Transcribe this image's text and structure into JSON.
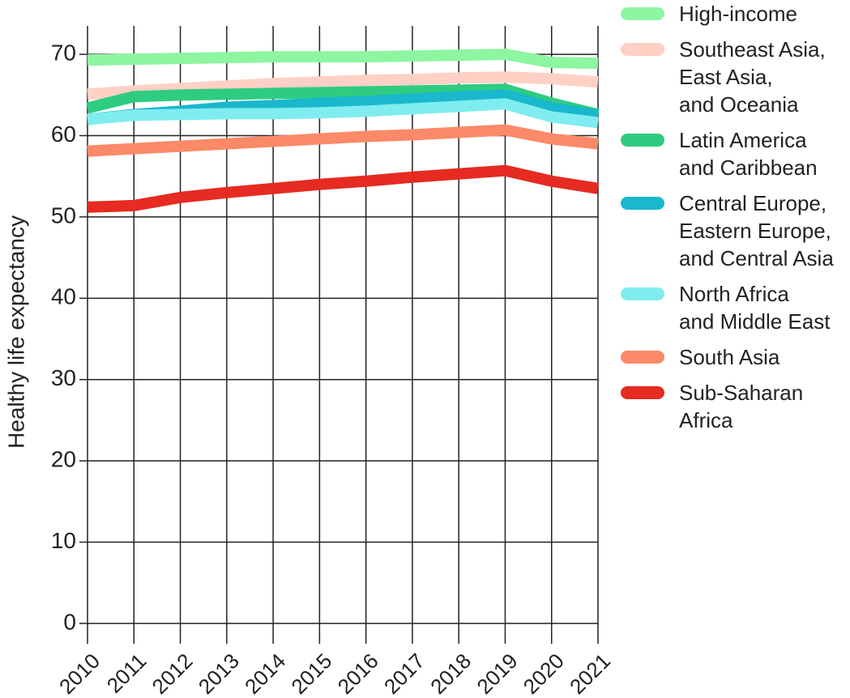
{
  "chart_data": {
    "type": "line",
    "y_label": "Healthy life expectancy",
    "x": [
      2010,
      2011,
      2012,
      2013,
      2014,
      2015,
      2016,
      2017,
      2018,
      2019,
      2020,
      2021
    ],
    "xlim": [
      2010,
      2021
    ],
    "xticks": [
      2010,
      2011,
      2012,
      2013,
      2014,
      2015,
      2016,
      2017,
      2018,
      2019,
      2020,
      2021
    ],
    "ylim": [
      -2.5,
      73.5
    ],
    "yticks": [
      0,
      10,
      20,
      30,
      40,
      50,
      60,
      70
    ],
    "grid": true,
    "legend": "right",
    "series": [
      {
        "name": "High-income",
        "color": "#8ef5a0",
        "values": [
          69.3,
          69.4,
          69.5,
          69.6,
          69.7,
          69.7,
          69.7,
          69.8,
          69.9,
          70.0,
          69.0,
          68.9
        ]
      },
      {
        "name": "Southeast Asia,\nEast Asia,\nand Oceania",
        "color": "#ffd0c4",
        "values": [
          65.1,
          65.5,
          65.8,
          66.1,
          66.4,
          66.6,
          66.8,
          66.9,
          67.1,
          67.2,
          67.0,
          66.6
        ]
      },
      {
        "name": "Latin America\nand Caribbean",
        "color": "#2ecc80",
        "values": [
          63.4,
          64.8,
          65.0,
          65.1,
          65.2,
          65.3,
          65.4,
          65.5,
          65.6,
          65.7,
          64.0,
          62.6
        ]
      },
      {
        "name": "Central Europe,\nEastern Europe,\nand Central Asia",
        "color": "#1ab8cc",
        "values": [
          62.0,
          62.6,
          63.0,
          63.5,
          63.7,
          64.0,
          64.2,
          64.5,
          64.8,
          65.0,
          63.4,
          62.5
        ]
      },
      {
        "name": "North Africa\nand Middle East",
        "color": "#7fedf0",
        "values": [
          62.0,
          62.5,
          62.6,
          62.7,
          62.7,
          62.8,
          63.0,
          63.3,
          63.6,
          63.9,
          62.3,
          61.6
        ]
      },
      {
        "name": "South Asia",
        "color": "#fa8a68",
        "values": [
          58.1,
          58.4,
          58.7,
          59.0,
          59.3,
          59.6,
          59.9,
          60.1,
          60.4,
          60.7,
          59.6,
          59.0
        ]
      },
      {
        "name": "Sub-Saharan\nAfrica",
        "color": "#e52b22",
        "values": [
          51.2,
          51.4,
          52.4,
          53.0,
          53.5,
          54.0,
          54.4,
          54.9,
          55.3,
          55.7,
          54.4,
          53.5
        ]
      }
    ]
  }
}
